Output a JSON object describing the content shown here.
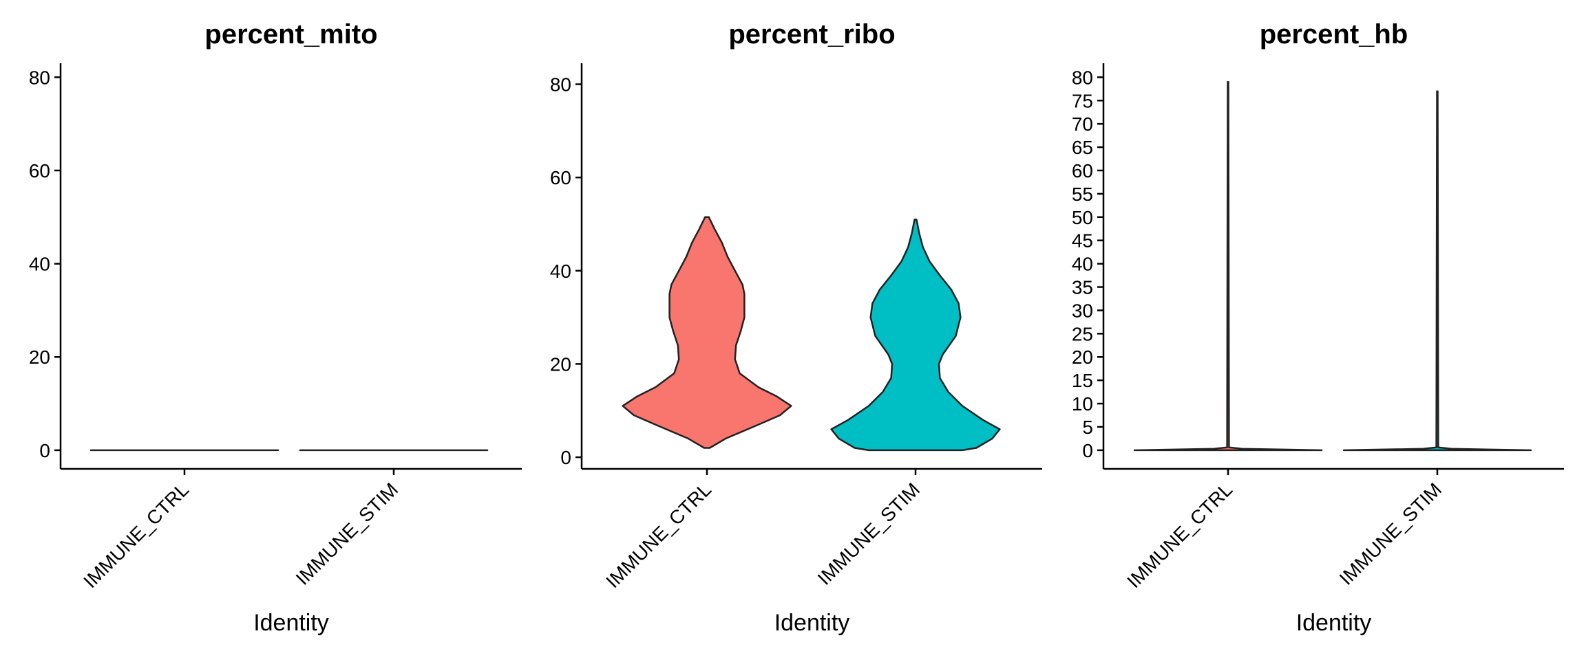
{
  "chart_data": [
    {
      "type": "violin",
      "title": "percent_mito",
      "xlabel": "Identity",
      "ylabel": "",
      "categories": [
        "IMMUNE_CTRL",
        "IMMUNE_STIM"
      ],
      "ylim": [
        -4,
        83
      ],
      "yticks": [
        0,
        20,
        40,
        60,
        80
      ],
      "colors": [
        "#F8766D",
        "#00BFC4"
      ],
      "violins": [
        {
          "name": "IMMUNE_CTRL",
          "profile": [
            [
              0,
              1
            ],
            [
              0,
              1
            ]
          ]
        },
        {
          "name": "IMMUNE_STIM",
          "profile": [
            [
              0,
              1
            ],
            [
              0,
              1
            ]
          ]
        }
      ]
    },
    {
      "type": "violin",
      "title": "percent_ribo",
      "xlabel": "Identity",
      "ylabel": "",
      "categories": [
        "IMMUNE_CTRL",
        "IMMUNE_STIM"
      ],
      "ylim": [
        -2.5,
        84.5
      ],
      "yticks": [
        0,
        20,
        40,
        60,
        80
      ],
      "colors": [
        "#F8766D",
        "#00BFC4"
      ],
      "violins": [
        {
          "name": "IMMUNE_CTRL",
          "profile": [
            [
              2,
              0.03
            ],
            [
              4,
              0.2
            ],
            [
              7,
              0.55
            ],
            [
              9,
              0.78
            ],
            [
              11,
              0.9
            ],
            [
              13,
              0.75
            ],
            [
              15,
              0.55
            ],
            [
              18,
              0.35
            ],
            [
              21,
              0.3
            ],
            [
              24,
              0.31
            ],
            [
              27,
              0.36
            ],
            [
              30,
              0.4
            ],
            [
              33,
              0.4
            ],
            [
              35,
              0.4
            ],
            [
              37,
              0.38
            ],
            [
              40,
              0.3
            ],
            [
              43,
              0.22
            ],
            [
              46,
              0.16
            ],
            [
              49,
              0.08
            ],
            [
              51.5,
              0.02
            ]
          ]
        },
        {
          "name": "IMMUNE_STIM",
          "profile": [
            [
              1.5,
              0.5
            ],
            [
              2,
              0.65
            ],
            [
              4,
              0.82
            ],
            [
              6,
              0.9
            ],
            [
              8,
              0.72
            ],
            [
              11,
              0.5
            ],
            [
              14,
              0.35
            ],
            [
              17,
              0.26
            ],
            [
              20,
              0.25
            ],
            [
              22,
              0.29
            ],
            [
              26,
              0.43
            ],
            [
              30,
              0.48
            ],
            [
              33,
              0.46
            ],
            [
              36,
              0.38
            ],
            [
              39,
              0.26
            ],
            [
              42,
              0.15
            ],
            [
              45,
              0.08
            ],
            [
              48,
              0.04
            ],
            [
              51,
              0.01
            ]
          ]
        }
      ]
    },
    {
      "type": "violin",
      "title": "percent_hb",
      "xlabel": "Identity",
      "ylabel": "",
      "categories": [
        "IMMUNE_CTRL",
        "IMMUNE_STIM"
      ],
      "ylim": [
        -4,
        83
      ],
      "yticks": [
        0,
        5,
        10,
        15,
        20,
        25,
        30,
        35,
        40,
        45,
        50,
        55,
        60,
        65,
        70,
        75,
        80
      ],
      "colors": [
        "#F8766D",
        "#00BFC4"
      ],
      "violins": [
        {
          "name": "IMMUNE_CTRL",
          "profile": [
            [
              0,
              1
            ],
            [
              0.3,
              0.15
            ],
            [
              0.6,
              0.01
            ],
            [
              79,
              0.004
            ]
          ]
        },
        {
          "name": "IMMUNE_STIM",
          "profile": [
            [
              0,
              1
            ],
            [
              0.3,
              0.15
            ],
            [
              0.6,
              0.01
            ],
            [
              77,
              0.004
            ]
          ]
        }
      ]
    }
  ]
}
